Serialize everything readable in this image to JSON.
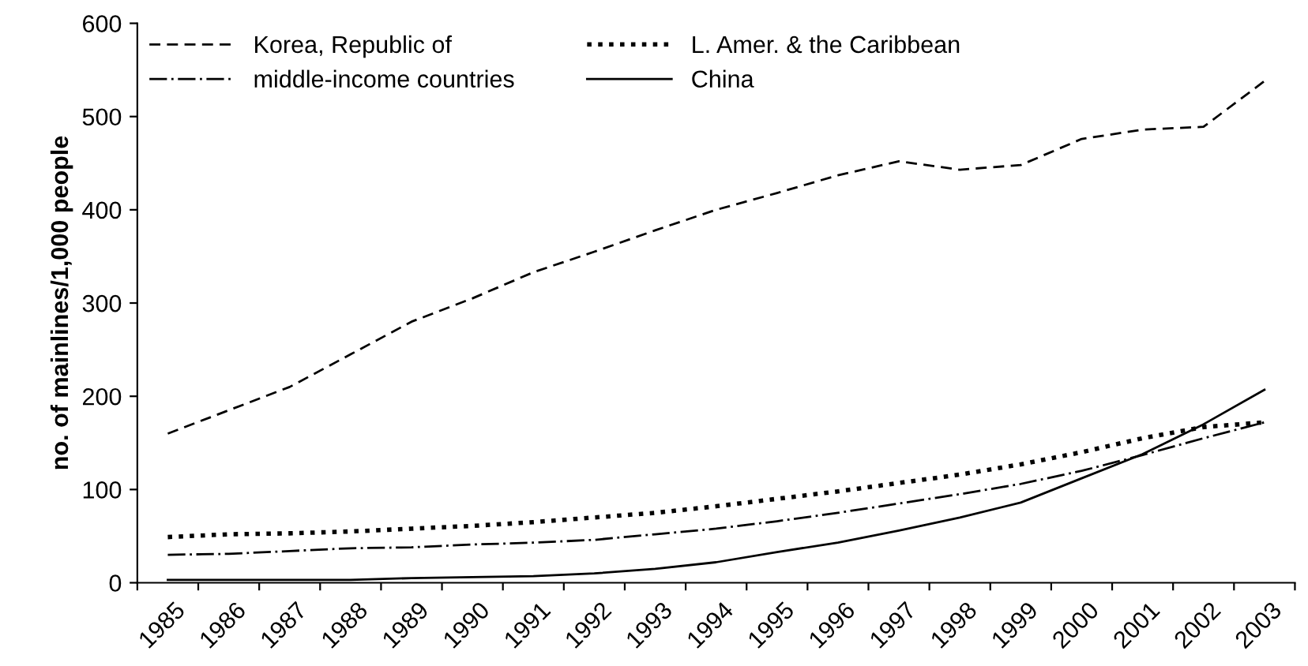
{
  "chart_data": {
    "type": "line",
    "ylabel": "no. of mainlines/1,000 people",
    "categories": [
      "1985",
      "1986",
      "1987",
      "1988",
      "1989",
      "1990",
      "1991",
      "1992",
      "1993",
      "1994",
      "1995",
      "1996",
      "1997",
      "1998",
      "1999",
      "2000",
      "2001",
      "2002",
      "2003"
    ],
    "ylim": [
      0,
      600
    ],
    "yticks": [
      0,
      100,
      200,
      300,
      400,
      500,
      600
    ],
    "grid": false,
    "legend": "top left",
    "series": [
      {
        "name": "Korea, Republic of",
        "color": "#000000",
        "line_style": "dashed",
        "values": [
          160,
          185,
          210,
          245,
          280,
          305,
          333,
          355,
          378,
          400,
          418,
          437,
          452,
          443,
          448,
          476,
          486,
          489,
          538
        ]
      },
      {
        "name": "L. Amer. & the Caribbean",
        "color": "#000000",
        "line_style": "dotted",
        "values": [
          49,
          52,
          53,
          55,
          58,
          61,
          65,
          70,
          75,
          82,
          90,
          98,
          107,
          116,
          127,
          140,
          155,
          167,
          172
        ]
      },
      {
        "name": "middle-income countries",
        "color": "#000000",
        "line_style": "dashdot",
        "values": [
          30,
          31,
          34,
          37,
          38,
          41,
          43,
          46,
          52,
          58,
          66,
          75,
          85,
          95,
          106,
          120,
          137,
          155,
          172
        ]
      },
      {
        "name": "China",
        "color": "#000000",
        "line_style": "solid",
        "values": [
          3,
          3,
          3,
          3,
          5,
          6,
          7,
          10,
          15,
          22,
          33,
          43,
          56,
          70,
          86,
          112,
          138,
          170,
          207
        ]
      }
    ]
  }
}
